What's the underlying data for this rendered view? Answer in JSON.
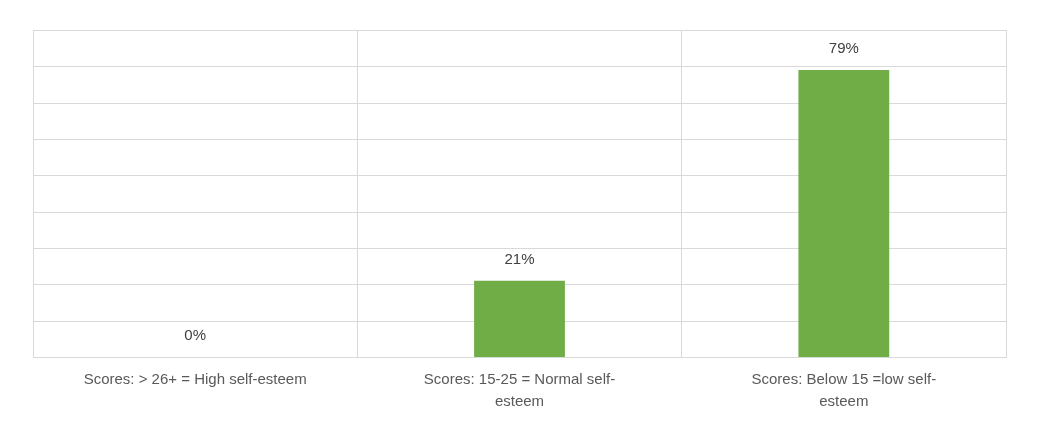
{
  "chart_data": {
    "type": "bar",
    "categories": [
      "Scores: > 26+ = High self-esteem",
      "Scores: 15-25 = Normal self-esteem",
      "Scores: Below 15 =low self-esteem"
    ],
    "values": [
      0,
      21,
      79
    ],
    "color": "#70ad47",
    "value_labels": [
      "0%",
      "21%",
      "79%"
    ],
    "ylim": [
      0,
      90
    ],
    "tick_labels": "x",
    "grid": true
  }
}
